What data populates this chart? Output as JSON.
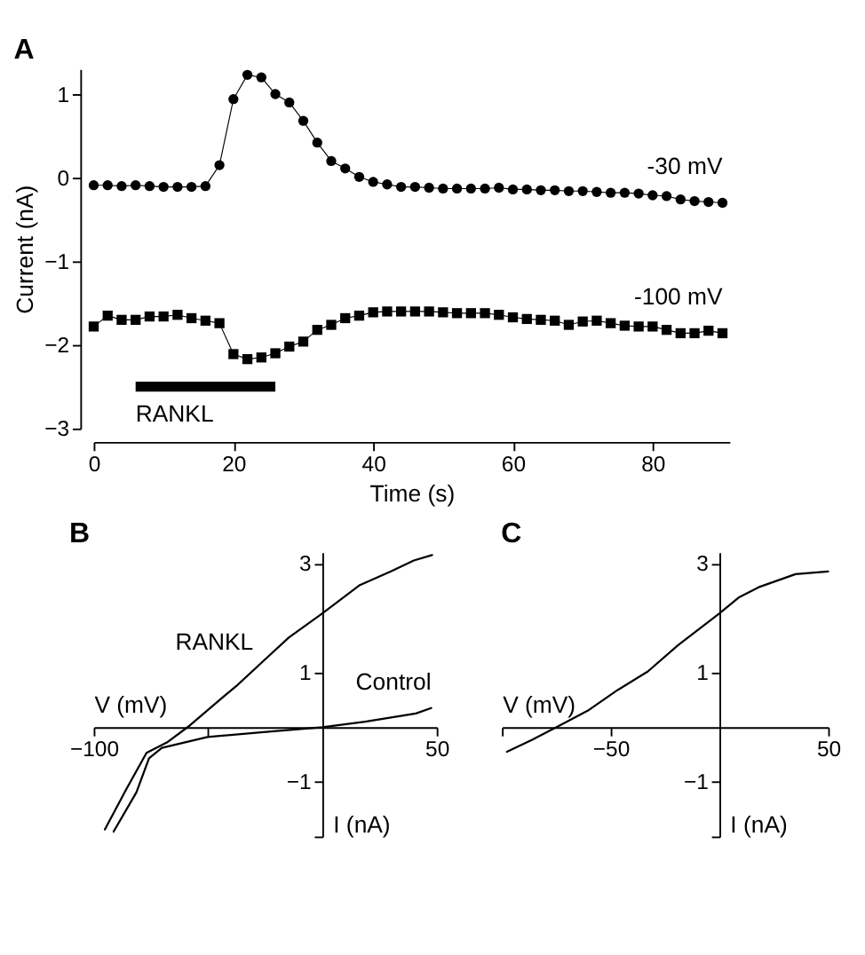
{
  "chart_data": [
    {
      "type": "line",
      "title": "A",
      "xlabel": "Time (s)",
      "ylabel": "Current (nA)",
      "xlim": [
        0,
        91
      ],
      "ylim": [
        -3,
        1.3
      ],
      "xticks": [
        0,
        20,
        40,
        60,
        80
      ],
      "yticks": [
        -3,
        -2,
        -1,
        0,
        1
      ],
      "grid": false,
      "x": [
        0,
        2,
        4,
        6,
        8,
        10,
        12,
        14,
        16,
        18,
        20,
        22,
        24,
        26,
        28,
        30,
        32,
        34,
        36,
        38,
        40,
        42,
        44,
        46,
        48,
        50,
        52,
        54,
        56,
        58,
        60,
        62,
        64,
        66,
        68,
        70,
        72,
        74,
        76,
        78,
        80,
        82,
        84,
        86,
        88,
        90
      ],
      "series": [
        {
          "name": "-30 mV",
          "color": "#000000",
          "marker": "circle",
          "line_style": "solid",
          "values": [
            -0.09,
            -0.09,
            -0.1,
            -0.09,
            -0.1,
            -0.11,
            -0.11,
            -0.11,
            -0.1,
            0.15,
            0.94,
            1.23,
            1.2,
            1.0,
            0.9,
            0.68,
            0.42,
            0.2,
            0.11,
            0.01,
            -0.05,
            -0.08,
            -0.11,
            -0.11,
            -0.12,
            -0.13,
            -0.13,
            -0.13,
            -0.13,
            -0.12,
            -0.14,
            -0.14,
            -0.15,
            -0.15,
            -0.16,
            -0.16,
            -0.17,
            -0.18,
            -0.18,
            -0.19,
            -0.21,
            -0.22,
            -0.26,
            -0.28,
            -0.29,
            -0.3
          ]
        },
        {
          "name": "-100 mV",
          "color": "#000000",
          "marker": "square",
          "line_style": "solid",
          "values": [
            -1.78,
            -1.65,
            -1.7,
            -1.7,
            -1.66,
            -1.66,
            -1.64,
            -1.68,
            -1.71,
            -1.74,
            -2.11,
            -2.17,
            -2.15,
            -2.1,
            -2.02,
            -1.96,
            -1.82,
            -1.76,
            -1.68,
            -1.65,
            -1.61,
            -1.6,
            -1.6,
            -1.6,
            -1.6,
            -1.61,
            -1.62,
            -1.62,
            -1.62,
            -1.64,
            -1.67,
            -1.69,
            -1.7,
            -1.71,
            -1.76,
            -1.72,
            -1.71,
            -1.74,
            -1.77,
            -1.78,
            -1.78,
            -1.82,
            -1.86,
            -1.86,
            -1.83,
            -1.86
          ]
        },
        {
          "name": "RANKL",
          "color": "#000000",
          "marker": "none",
          "line_style": "solid",
          "x": [
            6,
            26
          ],
          "values": [
            -2.5,
            -2.5
          ]
        }
      ]
    },
    {
      "type": "line",
      "title": "B",
      "xlabel": "V (mV)",
      "ylabel": "I (nA)",
      "xlim": [
        -100,
        50
      ],
      "ylim": [
        -2,
        3.2
      ],
      "xticks": [
        -100,
        {
          "value": -50,
          "label": null
        },
        50
      ],
      "yticks": [
        {
          "value": -2,
          "label": null
        },
        -1,
        1,
        3
      ],
      "grid": false,
      "marker": "none",
      "line_style": "solid",
      "series": [
        {
          "name": "RANKL",
          "color": "#000000",
          "x": [
            -95.1,
            -85.8,
            -76.9,
            -68,
            -58,
            -48,
            -36.9,
            -25.8,
            -14.7,
            0,
            16.4,
            30,
            40,
            48
          ],
          "values": [
            -1.87,
            -1.14,
            -0.47,
            -0.28,
            0.03,
            0.39,
            0.78,
            1.21,
            1.64,
            2.08,
            2.6,
            2.85,
            3.05,
            3.15
          ]
        },
        {
          "name": "Control",
          "color": "#000000",
          "x": [
            -91.3,
            -81.3,
            -75.8,
            -70.2,
            -50.2,
            -25.8,
            0,
            18.7,
            40.9,
            47.6
          ],
          "values": [
            -1.91,
            -1.19,
            -0.57,
            -0.38,
            -0.18,
            -0.09,
            0,
            0.1,
            0.25,
            0.35
          ]
        }
      ]
    },
    {
      "type": "line",
      "title": "C",
      "xlabel": "V (mV)",
      "ylabel": "I (nA)",
      "xlim": [
        -100,
        50
      ],
      "ylim": [
        -2,
        3.2
      ],
      "xticks": [
        {
          "value": -100,
          "label": null
        },
        -50,
        50
      ],
      "yticks": [
        {
          "value": -2,
          "label": null
        },
        -1,
        1,
        3
      ],
      "grid": false,
      "marker": "none",
      "line_style": "solid",
      "series": [
        {
          "color": "#000000",
          "x": [
            -97.7,
            -86.1,
            -74.5,
            -60.6,
            -46.8,
            -32.9,
            -19,
            0,
            8.8,
            18,
            35,
            50
          ],
          "values": [
            -0.45,
            -0.23,
            0.01,
            0.3,
            0.68,
            1.02,
            1.5,
            2.08,
            2.37,
            2.56,
            2.8,
            2.85
          ]
        }
      ]
    }
  ]
}
